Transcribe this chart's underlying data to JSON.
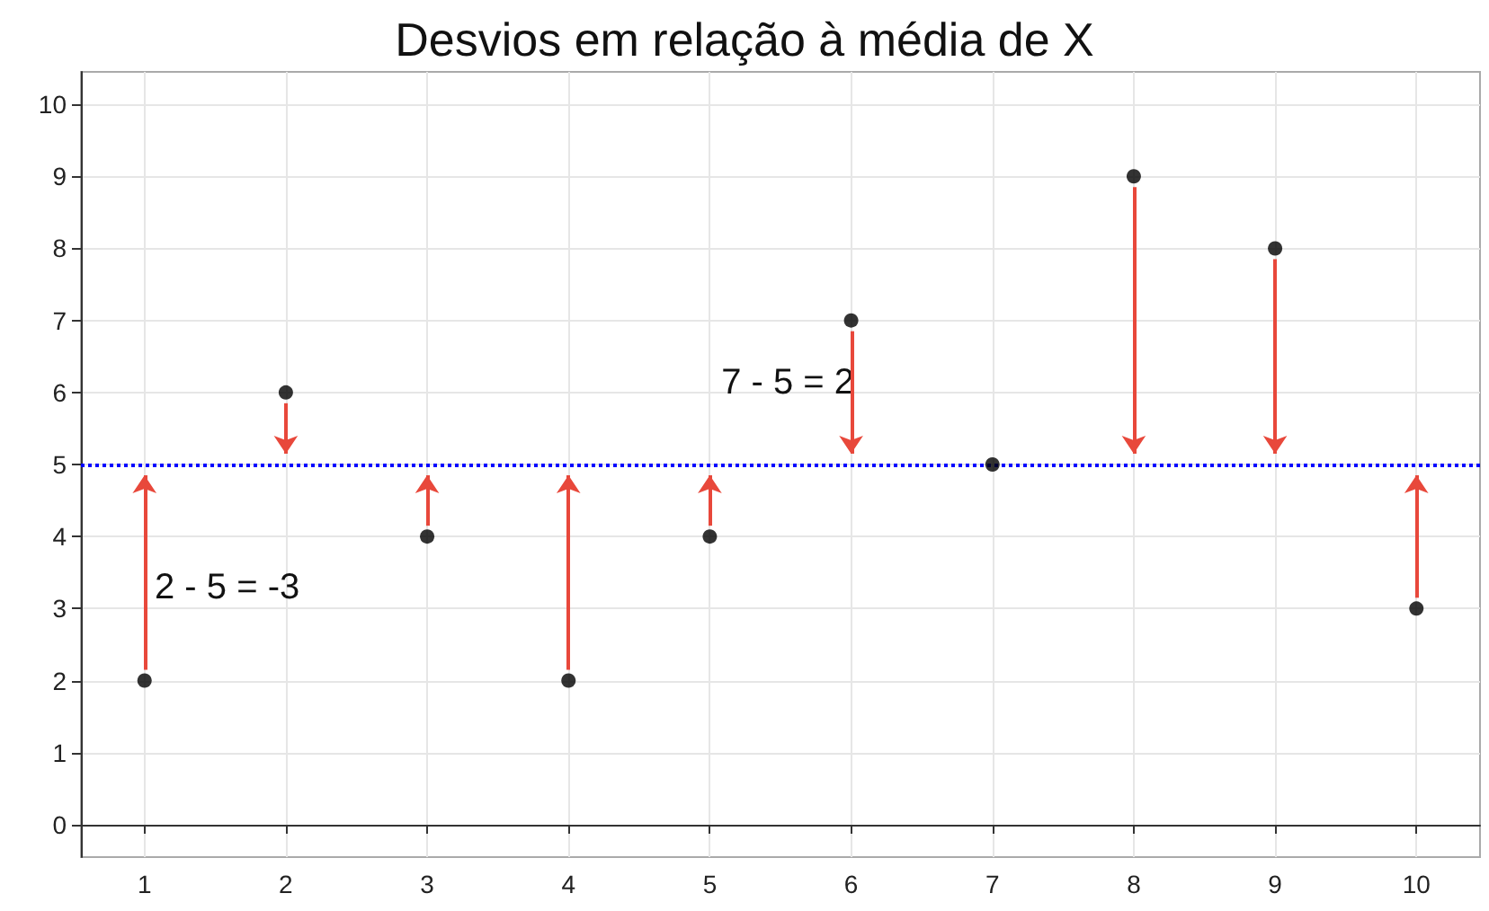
{
  "chart_data": {
    "type": "scatter",
    "title": "Desvios em relação à média de X",
    "x": [
      1,
      2,
      3,
      4,
      5,
      6,
      7,
      8,
      9,
      10
    ],
    "series": [
      {
        "color": "#000000",
        "values": [
          2,
          6,
          4,
          2,
          4,
          7,
          5,
          9,
          8,
          3
        ]
      }
    ],
    "xlim": [
      0.55,
      10.45
    ],
    "xticks": [
      1,
      2,
      3,
      4,
      5,
      6,
      7,
      8,
      9,
      10
    ],
    "ylim": [
      -0.45,
      10.45
    ],
    "yticks": [
      0,
      1,
      2,
      3,
      4,
      5,
      6,
      7,
      8,
      9,
      10
    ],
    "grid": true,
    "marker": "circle",
    "ref_lines": [
      {
        "axis": "y",
        "value": 5,
        "color": "#0000ff",
        "line_style": "dotted"
      }
    ],
    "annotations": [
      "2 - 5 = -3",
      "7 - 5 = 2"
    ]
  }
}
